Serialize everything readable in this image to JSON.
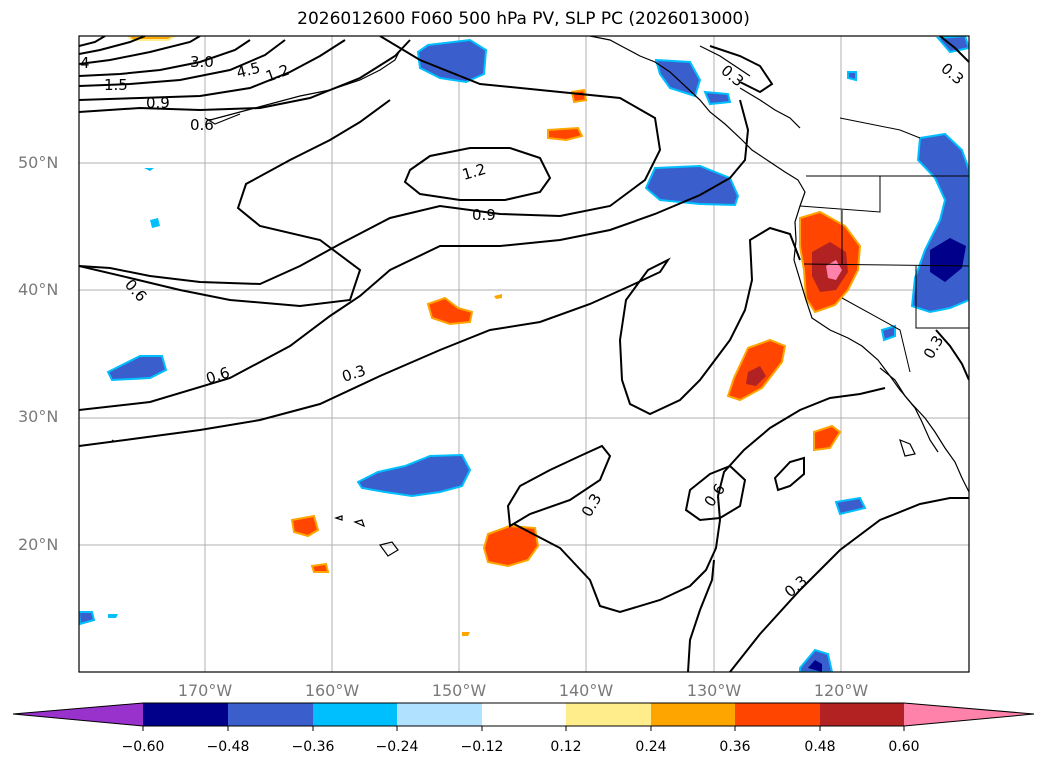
{
  "title": "2026012600 F060 500 hPa PV, SLP PC (2026013000)",
  "lat_labels": [
    "50°N",
    "40°N",
    "30°N",
    "20°N"
  ],
  "lon_labels": [
    "170°W",
    "160°W",
    "150°W",
    "140°W",
    "130°W",
    "120°W"
  ],
  "contour_labels": [
    "4",
    "3.0",
    "4.5",
    "1.2",
    "1.5",
    "0.9",
    "0.6",
    "1.2",
    "0.9",
    "0.6",
    "0.6",
    "0.3",
    "0.3",
    "0.3",
    "0.6",
    "0.3",
    "0.3",
    "0.3"
  ],
  "colorbar": {
    "tick_labels": [
      "−0.60",
      "−0.48",
      "−0.36",
      "−0.24",
      "−0.12",
      "0.12",
      "0.24",
      "0.36",
      "0.48",
      "0.60"
    ],
    "colors": [
      "#9932CC",
      "#00008B",
      "#3A5FCD",
      "#00BFFF",
      "#B0E2FF",
      "#FFFFFF",
      "#FFEC8B",
      "#FFA500",
      "#FF4500",
      "#B22222",
      "#FF82AB"
    ]
  },
  "colors": {
    "neg_dark": "#00008B",
    "neg_mid": "#3A5FCD",
    "neg_light": "#00BFFF",
    "pos_light": "#FFEC8B",
    "pos_mid": "#FFA500",
    "pos_strong": "#FF4500",
    "pos_dark": "#B22222",
    "pos_max": "#FF82AB",
    "grid": "#b0b0b0",
    "axis_label": "#7a7a7a"
  }
}
